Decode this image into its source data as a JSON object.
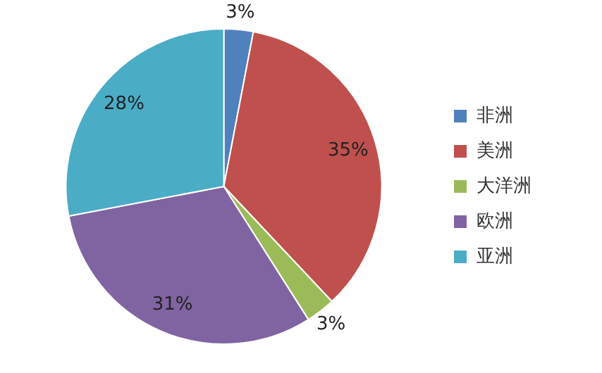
{
  "chart_data": {
    "type": "pie",
    "categories": [
      "非洲",
      "美洲",
      "大洋洲",
      "欧洲",
      "亚洲"
    ],
    "values": [
      3,
      35,
      3,
      31,
      28
    ],
    "value_labels": [
      "3%",
      "35%",
      "3%",
      "31%",
      "28%"
    ],
    "colors": [
      "#4f81bd",
      "#c0504d",
      "#9bbb59",
      "#8064a2",
      "#4bacc6"
    ],
    "legend": "right"
  }
}
